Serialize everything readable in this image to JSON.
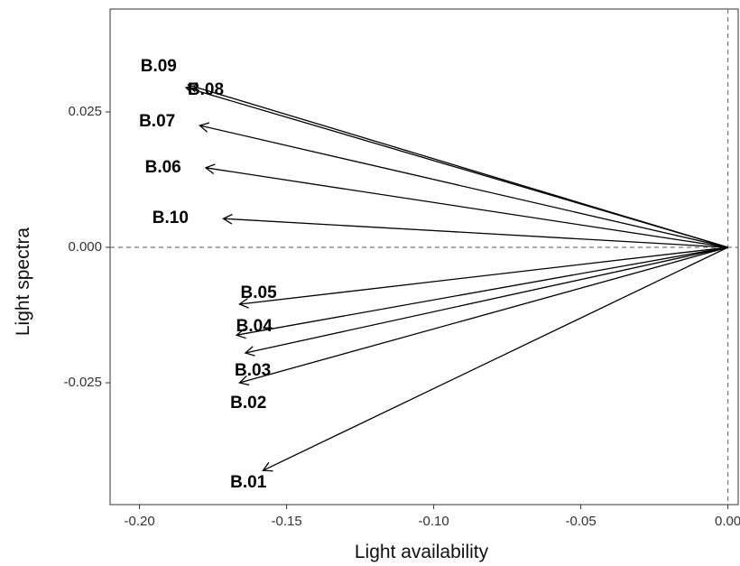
{
  "chart_data": {
    "type": "biplot-vectors",
    "xlabel": "Light availability",
    "ylabel": "Light spectra",
    "xlim": [
      -0.21,
      0.0035
    ],
    "ylim": [
      -0.0475,
      0.044
    ],
    "x_ticks": [
      -0.2,
      -0.15,
      -0.1,
      -0.05,
      0.0
    ],
    "x_tick_labels": [
      "-0.20",
      "-0.15",
      "-0.10",
      "-0.05",
      "0.00"
    ],
    "y_ticks": [
      -0.025,
      0.0,
      0.025
    ],
    "y_tick_labels": [
      "-0.025",
      "0.000",
      "0.025"
    ],
    "reference_lines": {
      "x": 0,
      "y": 0,
      "style": "dashed"
    },
    "grid": false,
    "origin": [
      0,
      0
    ],
    "vectors": [
      {
        "name": "B.09",
        "x": -0.1835,
        "y": 0.03,
        "label_x": -0.1935,
        "label_y": 0.0333
      },
      {
        "name": "B.08",
        "x": -0.1842,
        "y": 0.0295,
        "label_x": -0.1775,
        "label_y": 0.029
      },
      {
        "name": "B.07",
        "x": -0.1795,
        "y": 0.0225,
        "label_x": -0.194,
        "label_y": 0.0232
      },
      {
        "name": "B.06",
        "x": -0.1775,
        "y": 0.0147,
        "label_x": -0.192,
        "label_y": 0.0147
      },
      {
        "name": "B.10",
        "x": -0.1715,
        "y": 0.0053,
        "label_x": -0.1895,
        "label_y": 0.0053
      },
      {
        "name": "B.05",
        "x": -0.166,
        "y": -0.0105,
        "label_x": -0.1595,
        "label_y": -0.0085
      },
      {
        "name": "B.04",
        "x": -0.167,
        "y": -0.0162,
        "label_x": -0.161,
        "label_y": -0.0147
      },
      {
        "name": "B.03",
        "x": -0.164,
        "y": -0.0195,
        "label_x": -0.1615,
        "label_y": -0.0228
      },
      {
        "name": "B.02",
        "x": -0.166,
        "y": -0.025,
        "label_x": -0.163,
        "label_y": -0.0288
      },
      {
        "name": "B.01",
        "x": -0.158,
        "y": -0.0412,
        "label_x": -0.163,
        "label_y": -0.0435
      }
    ],
    "colors": {
      "vector": "#000000",
      "reference": "#777777",
      "frame": "#333333"
    }
  }
}
